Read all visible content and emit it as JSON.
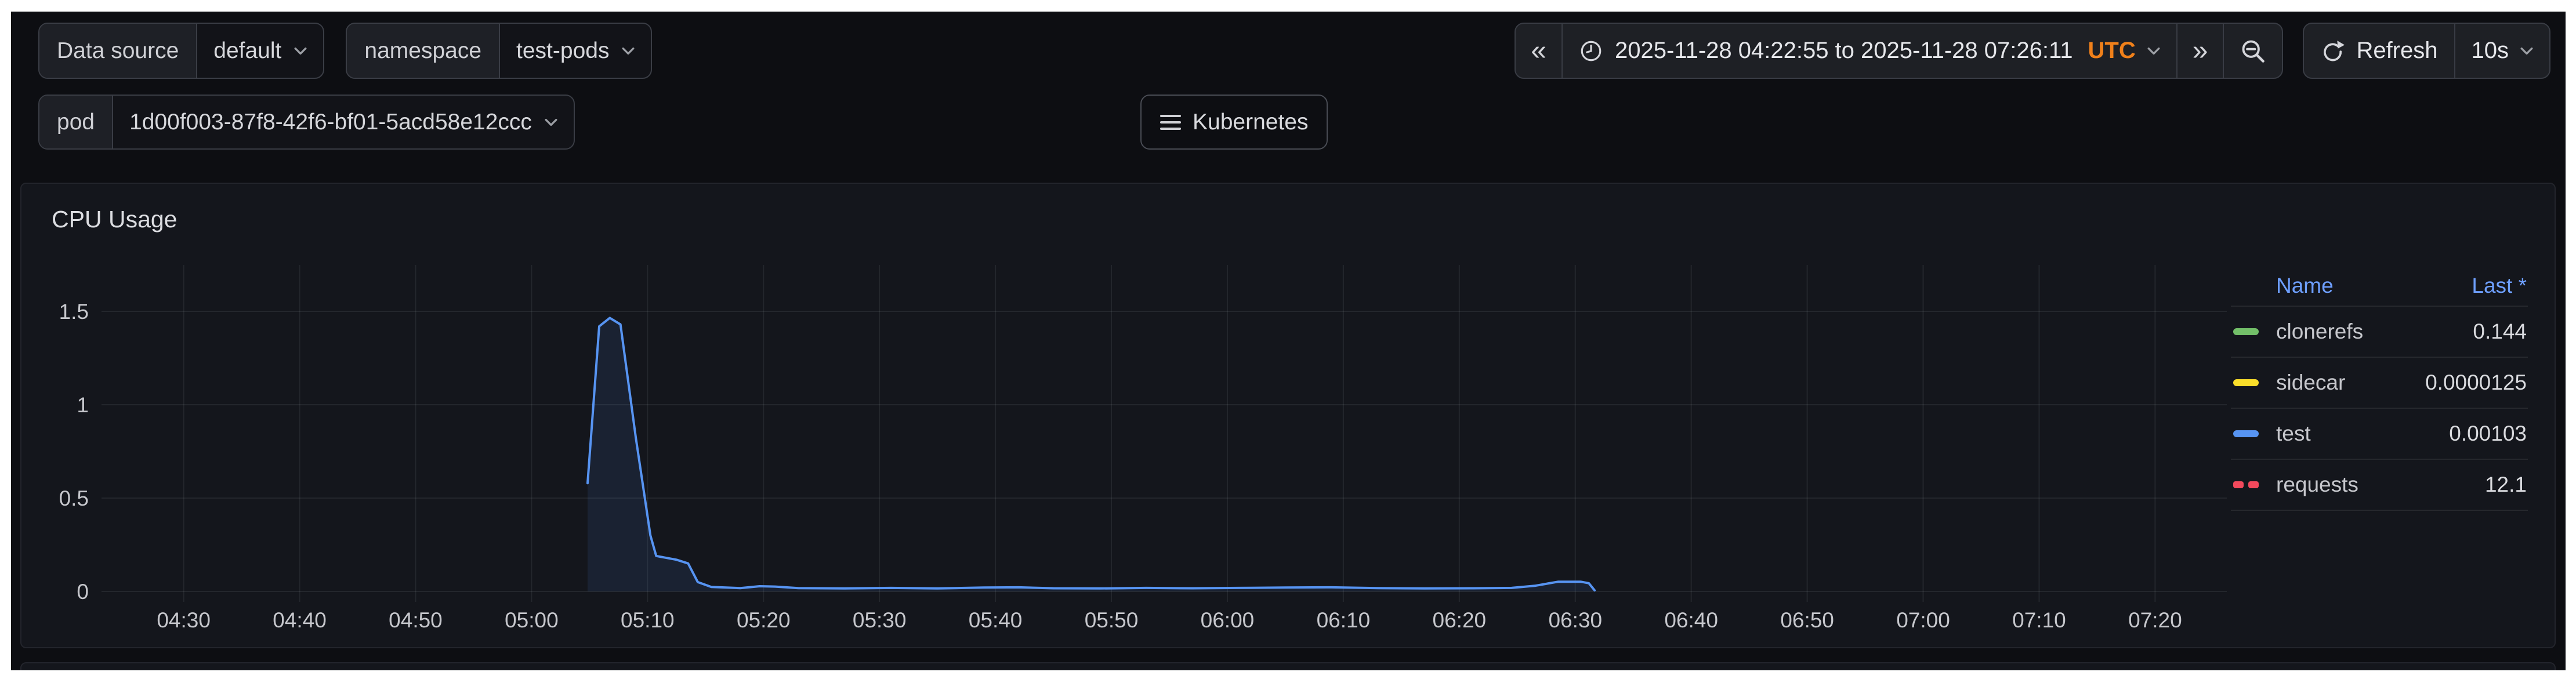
{
  "toolbar": {
    "variables": [
      {
        "label": "Data source",
        "value": "default"
      },
      {
        "label": "namespace",
        "value": "test-pods"
      },
      {
        "label": "pod",
        "value": "1d00f003-87f8-42f6-bf01-5acd58e12ccc"
      }
    ],
    "kubernetes_button": "Kubernetes",
    "time_picker": {
      "back_glyph": "«",
      "forward_glyph": "»",
      "range_text": "2025-11-28 04:22:55 to 2025-11-28 07:26:11",
      "timezone": "UTC",
      "refresh_label": "Refresh",
      "interval": "10s"
    }
  },
  "panel": {
    "title": "CPU Usage",
    "legend": {
      "name_header": "Name",
      "last_header": "Last *"
    }
  },
  "colors": {
    "accent_blue": "#6e9fff",
    "utc_orange": "#f0801a",
    "grid": "rgba(240,250,255,0.07)",
    "axis_text": "#c6c7cc",
    "area_fill_opacity": 0.1
  },
  "chart_data": {
    "type": "line",
    "title": "CPU Usage",
    "x_date": "2025-11-28",
    "x_start": "04:22:55",
    "x_end": "07:26:11",
    "x_ticks": [
      "04:30",
      "04:40",
      "04:50",
      "05:00",
      "05:10",
      "05:20",
      "05:30",
      "05:40",
      "05:50",
      "06:00",
      "06:10",
      "06:20",
      "06:30",
      "06:40",
      "06:50",
      "07:00",
      "07:10",
      "07:20"
    ],
    "y_ticks": [
      0,
      0.5,
      1,
      1.5
    ],
    "ylim": [
      0,
      1.77
    ],
    "grid": true,
    "legend_position": "right-table",
    "note": "Only the 'test' (blue) series is visibly plotted; it has data from ~05:05 to ~06:32.",
    "series": [
      {
        "name": "clonerefs",
        "color": "#73bf69",
        "dash": false,
        "last": "0.144",
        "points": []
      },
      {
        "name": "sidecar",
        "color": "#fade2a",
        "dash": false,
        "last": "0.0000125",
        "points": []
      },
      {
        "name": "test",
        "color": "#5794f2",
        "dash": false,
        "last": "0.00103",
        "points": [
          [
            "05:04:50",
            0.58
          ],
          [
            "05:05:50",
            1.42
          ],
          [
            "05:06:45",
            1.465
          ],
          [
            "05:07:40",
            1.43
          ],
          [
            "05:09:00",
            0.82
          ],
          [
            "05:10:15",
            0.3
          ],
          [
            "05:10:45",
            0.19
          ],
          [
            "05:12:30",
            0.17
          ],
          [
            "05:13:30",
            0.15
          ],
          [
            "05:14:20",
            0.05
          ],
          [
            "05:15:30",
            0.024
          ],
          [
            "05:18:00",
            0.018
          ],
          [
            "05:19:40",
            0.028
          ],
          [
            "05:21:00",
            0.026
          ],
          [
            "05:23:00",
            0.018
          ],
          [
            "05:27:00",
            0.016
          ],
          [
            "05:31:00",
            0.019
          ],
          [
            "05:35:00",
            0.016
          ],
          [
            "05:39:00",
            0.021
          ],
          [
            "05:42:00",
            0.022
          ],
          [
            "05:45:00",
            0.017
          ],
          [
            "05:49:00",
            0.016
          ],
          [
            "05:53:00",
            0.019
          ],
          [
            "05:57:00",
            0.017
          ],
          [
            "06:01:00",
            0.019
          ],
          [
            "06:05:00",
            0.021
          ],
          [
            "06:09:00",
            0.022
          ],
          [
            "06:13:00",
            0.018
          ],
          [
            "06:17:00",
            0.016
          ],
          [
            "06:21:00",
            0.017
          ],
          [
            "06:24:30",
            0.019
          ],
          [
            "06:26:30",
            0.03
          ],
          [
            "06:28:30",
            0.052
          ],
          [
            "06:30:30",
            0.052
          ],
          [
            "06:31:10",
            0.044
          ],
          [
            "06:31:40",
            0.006
          ]
        ]
      },
      {
        "name": "requests",
        "color": "#f2495c",
        "dash": true,
        "last": "12.1",
        "points": []
      }
    ]
  }
}
